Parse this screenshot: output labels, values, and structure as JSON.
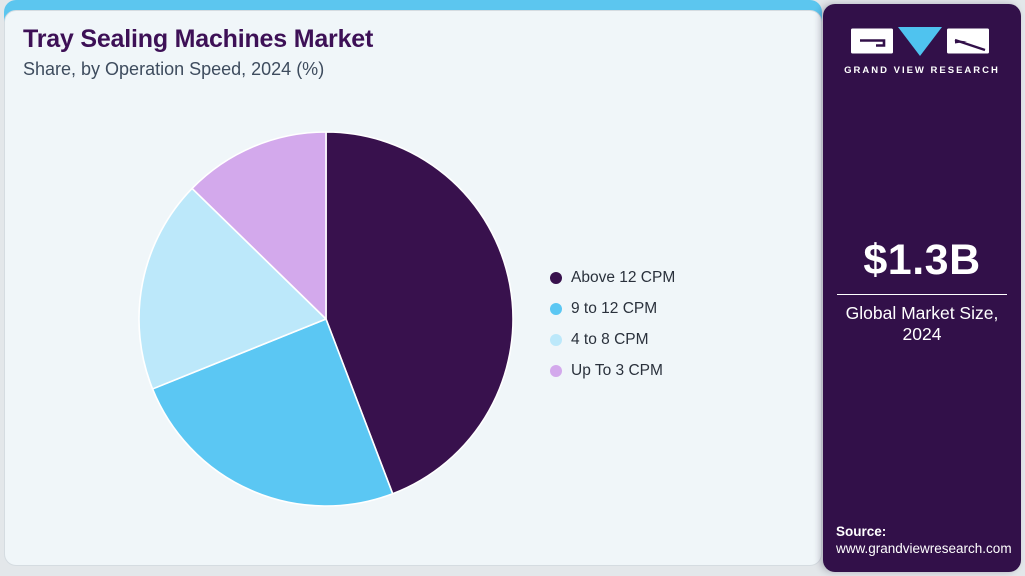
{
  "page": {
    "title": "Tray Sealing Machines Market",
    "subtitle": "Share, by Operation Speed, 2024 (%)"
  },
  "chart_data": {
    "type": "pie",
    "title": "Tray Sealing Machines Market Share, by Operation Speed, 2024 (%)",
    "categories": [
      "Above 12 CPM",
      "9 to 12 CPM",
      "4 to 8 CPM",
      "Up To 3 CPM"
    ],
    "values": [
      44.2,
      24.7,
      18.4,
      12.7
    ],
    "unit": "%",
    "colors": [
      "#38114d",
      "#5bc7f3",
      "#bce8fa",
      "#d3a9ec"
    ],
    "start_angle_deg": 0,
    "direction": "clockwise",
    "legend_position": "right",
    "slice_labels_shown": false
  },
  "sidebar": {
    "logo_text": "GRAND VIEW RESEARCH",
    "market_size_value": "$1.3B",
    "market_size_label_line1": "Global Market Size,",
    "market_size_label_line2": "2024",
    "source_label": "Source:",
    "source_url": "www.grandviewresearch.com"
  },
  "colors": {
    "accent_bar": "#5cc6ef",
    "card_bg": "#f0f6f9",
    "sidebar_bg": "#321049",
    "title_text": "#3d1056",
    "subtitle_text": "#3e4c5e",
    "legend_text": "#2a313c",
    "logo_triangle": "#4fc3ef"
  }
}
